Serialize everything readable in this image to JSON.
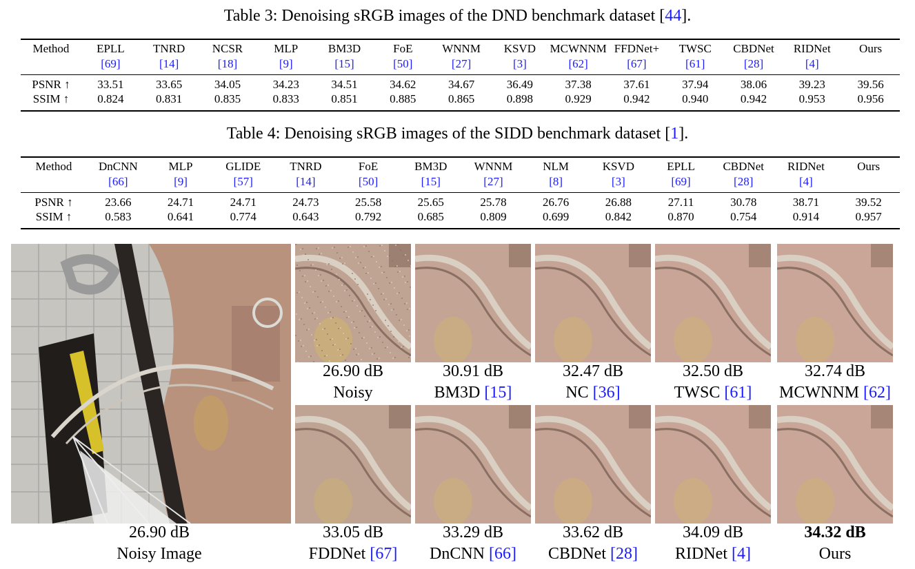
{
  "table3": {
    "caption_text": "Table 3: Denoising sRGB images of the DND benchmark dataset [",
    "caption_cite": "44",
    "caption_end": "].",
    "row_header": "Method",
    "methods": [
      {
        "name": "EPLL",
        "cite": "[69]"
      },
      {
        "name": "TNRD",
        "cite": "[14]"
      },
      {
        "name": "NCSR",
        "cite": "[18]"
      },
      {
        "name": "MLP",
        "cite": "[9]"
      },
      {
        "name": "BM3D",
        "cite": "[15]"
      },
      {
        "name": "FoE",
        "cite": "[50]"
      },
      {
        "name": "WNNM",
        "cite": "[27]"
      },
      {
        "name": "KSVD",
        "cite": "[3]"
      },
      {
        "name": "MCWNNM",
        "cite": "[62]"
      },
      {
        "name": "FFDNet+",
        "cite": "[67]"
      },
      {
        "name": "TWSC",
        "cite": "[61]"
      },
      {
        "name": "CBDNet",
        "cite": "[28]"
      },
      {
        "name": "RIDNet",
        "cite": "[4]"
      },
      {
        "name": "Ours",
        "cite": ""
      }
    ],
    "rows": [
      {
        "label": "PSNR ↑",
        "values": [
          "33.51",
          "33.65",
          "34.05",
          "34.23",
          "34.51",
          "34.62",
          "34.67",
          "36.49",
          "37.38",
          "37.61",
          "37.94",
          "38.06",
          "39.23",
          "39.56"
        ]
      },
      {
        "label": "SSIM ↑",
        "values": [
          "0.824",
          "0.831",
          "0.835",
          "0.833",
          "0.851",
          "0.885",
          "0.865",
          "0.898",
          "0.929",
          "0.942",
          "0.940",
          "0.942",
          "0.953",
          "0.956"
        ]
      }
    ]
  },
  "table4": {
    "caption_text": "Table 4: Denoising sRGB images of the SIDD benchmark dataset [",
    "caption_cite": "1",
    "caption_end": "].",
    "row_header": "Method",
    "methods": [
      {
        "name": "DnCNN",
        "cite": "[66]"
      },
      {
        "name": "MLP",
        "cite": "[9]"
      },
      {
        "name": "GLIDE",
        "cite": "[57]"
      },
      {
        "name": "TNRD",
        "cite": "[14]"
      },
      {
        "name": "FoE",
        "cite": "[50]"
      },
      {
        "name": "BM3D",
        "cite": "[15]"
      },
      {
        "name": "WNNM",
        "cite": "[27]"
      },
      {
        "name": "NLM",
        "cite": "[8]"
      },
      {
        "name": "KSVD",
        "cite": "[3]"
      },
      {
        "name": "EPLL",
        "cite": "[69]"
      },
      {
        "name": "CBDNet",
        "cite": "[28]"
      },
      {
        "name": "RIDNet",
        "cite": "[4]"
      },
      {
        "name": "Ours",
        "cite": ""
      }
    ],
    "rows": [
      {
        "label": "PSNR ↑",
        "values": [
          "23.66",
          "24.71",
          "24.71",
          "24.73",
          "25.58",
          "25.65",
          "25.78",
          "26.76",
          "26.88",
          "27.11",
          "30.78",
          "38.71",
          "39.52"
        ]
      },
      {
        "label": "SSIM ↑",
        "values": [
          "0.583",
          "0.641",
          "0.774",
          "0.643",
          "0.792",
          "0.685",
          "0.809",
          "0.699",
          "0.842",
          "0.870",
          "0.754",
          "0.914",
          "0.957"
        ]
      }
    ]
  },
  "figure": {
    "main": {
      "psnr": "26.90 dB",
      "name": "Noisy Image",
      "cite": ""
    },
    "top_row": [
      {
        "psnr": "26.90 dB",
        "name": "Noisy",
        "cite": ""
      },
      {
        "psnr": "30.91 dB",
        "name": "BM3D ",
        "cite": "[15]"
      },
      {
        "psnr": "32.47 dB",
        "name": "NC ",
        "cite": "[36]"
      },
      {
        "psnr": "32.50 dB",
        "name": "TWSC ",
        "cite": "[61]"
      },
      {
        "psnr": "32.74 dB",
        "name": "MCWNNM ",
        "cite": "[62]"
      }
    ],
    "bottom_row": [
      {
        "psnr": "33.05 dB",
        "name": "FDDNet ",
        "cite": "[67]"
      },
      {
        "psnr": "33.29 dB",
        "name": "DnCNN ",
        "cite": "[66]"
      },
      {
        "psnr": "33.62 dB",
        "name": "CBDNet ",
        "cite": "[28]"
      },
      {
        "psnr": "34.09 dB",
        "name": "RIDNet ",
        "cite": "[4]"
      },
      {
        "psnr": "34.32 dB",
        "name": "Ours",
        "cite": ""
      }
    ]
  }
}
